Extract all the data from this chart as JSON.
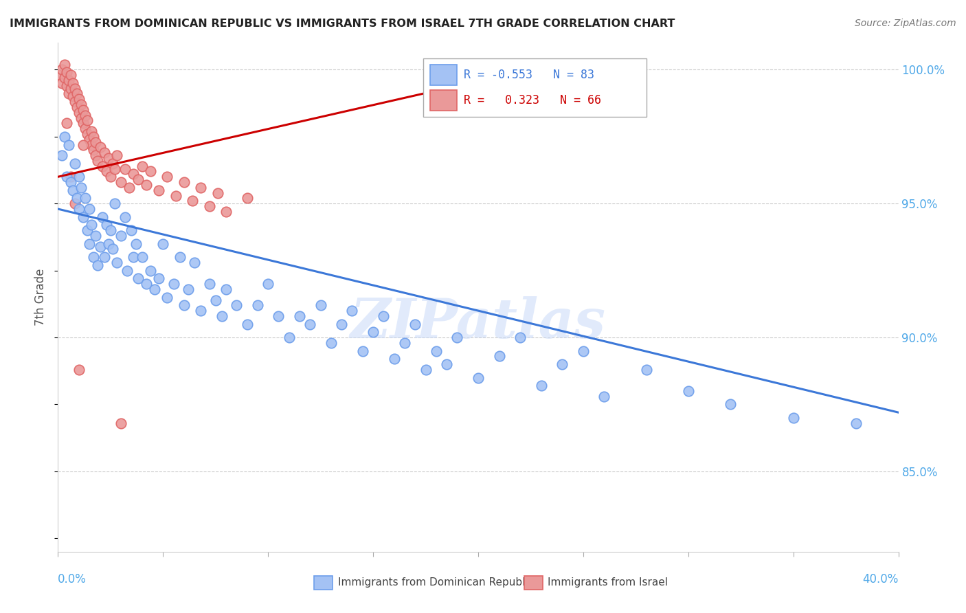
{
  "title": "IMMIGRANTS FROM DOMINICAN REPUBLIC VS IMMIGRANTS FROM ISRAEL 7TH GRADE CORRELATION CHART",
  "source": "Source: ZipAtlas.com",
  "ylabel": "7th Grade",
  "xlim": [
    0.0,
    0.4
  ],
  "ylim": [
    0.82,
    1.01
  ],
  "ytick_values": [
    0.85,
    0.9,
    0.95,
    1.0
  ],
  "ytick_labels": [
    "85.0%",
    "90.0%",
    "95.0%",
    "100.0%"
  ],
  "color_blue_fill": "#a4c2f4",
  "color_blue_edge": "#6d9eeb",
  "color_pink_fill": "#ea9999",
  "color_pink_edge": "#e06666",
  "color_blue_line": "#3c78d8",
  "color_pink_line": "#cc0000",
  "blue_line": [
    [
      0.0,
      0.948
    ],
    [
      0.4,
      0.872
    ]
  ],
  "pink_line": [
    [
      0.0,
      0.96
    ],
    [
      0.235,
      1.002
    ]
  ],
  "blue_points": [
    [
      0.002,
      0.968
    ],
    [
      0.003,
      0.975
    ],
    [
      0.004,
      0.96
    ],
    [
      0.005,
      0.972
    ],
    [
      0.006,
      0.958
    ],
    [
      0.007,
      0.955
    ],
    [
      0.008,
      0.965
    ],
    [
      0.009,
      0.952
    ],
    [
      0.01,
      0.96
    ],
    [
      0.01,
      0.948
    ],
    [
      0.011,
      0.956
    ],
    [
      0.012,
      0.945
    ],
    [
      0.013,
      0.952
    ],
    [
      0.014,
      0.94
    ],
    [
      0.015,
      0.948
    ],
    [
      0.015,
      0.935
    ],
    [
      0.016,
      0.942
    ],
    [
      0.017,
      0.93
    ],
    [
      0.018,
      0.938
    ],
    [
      0.019,
      0.927
    ],
    [
      0.02,
      0.934
    ],
    [
      0.021,
      0.945
    ],
    [
      0.022,
      0.93
    ],
    [
      0.023,
      0.942
    ],
    [
      0.024,
      0.935
    ],
    [
      0.025,
      0.94
    ],
    [
      0.026,
      0.933
    ],
    [
      0.027,
      0.95
    ],
    [
      0.028,
      0.928
    ],
    [
      0.03,
      0.938
    ],
    [
      0.032,
      0.945
    ],
    [
      0.033,
      0.925
    ],
    [
      0.035,
      0.94
    ],
    [
      0.036,
      0.93
    ],
    [
      0.037,
      0.935
    ],
    [
      0.038,
      0.922
    ],
    [
      0.04,
      0.93
    ],
    [
      0.042,
      0.92
    ],
    [
      0.044,
      0.925
    ],
    [
      0.046,
      0.918
    ],
    [
      0.048,
      0.922
    ],
    [
      0.05,
      0.935
    ],
    [
      0.052,
      0.915
    ],
    [
      0.055,
      0.92
    ],
    [
      0.058,
      0.93
    ],
    [
      0.06,
      0.912
    ],
    [
      0.062,
      0.918
    ],
    [
      0.065,
      0.928
    ],
    [
      0.068,
      0.91
    ],
    [
      0.072,
      0.92
    ],
    [
      0.075,
      0.914
    ],
    [
      0.078,
      0.908
    ],
    [
      0.08,
      0.918
    ],
    [
      0.085,
      0.912
    ],
    [
      0.09,
      0.905
    ],
    [
      0.095,
      0.912
    ],
    [
      0.1,
      0.92
    ],
    [
      0.105,
      0.908
    ],
    [
      0.11,
      0.9
    ],
    [
      0.115,
      0.908
    ],
    [
      0.12,
      0.905
    ],
    [
      0.125,
      0.912
    ],
    [
      0.13,
      0.898
    ],
    [
      0.135,
      0.905
    ],
    [
      0.14,
      0.91
    ],
    [
      0.145,
      0.895
    ],
    [
      0.15,
      0.902
    ],
    [
      0.155,
      0.908
    ],
    [
      0.16,
      0.892
    ],
    [
      0.165,
      0.898
    ],
    [
      0.17,
      0.905
    ],
    [
      0.175,
      0.888
    ],
    [
      0.18,
      0.895
    ],
    [
      0.185,
      0.89
    ],
    [
      0.19,
      0.9
    ],
    [
      0.2,
      0.885
    ],
    [
      0.21,
      0.893
    ],
    [
      0.22,
      0.9
    ],
    [
      0.23,
      0.882
    ],
    [
      0.24,
      0.89
    ],
    [
      0.25,
      0.895
    ],
    [
      0.26,
      0.878
    ],
    [
      0.28,
      0.888
    ],
    [
      0.3,
      0.88
    ],
    [
      0.32,
      0.875
    ],
    [
      0.35,
      0.87
    ],
    [
      0.38,
      0.868
    ]
  ],
  "pink_points": [
    [
      0.001,
      0.998
    ],
    [
      0.002,
      0.995
    ],
    [
      0.002,
      1.0
    ],
    [
      0.003,
      0.997
    ],
    [
      0.003,
      1.002
    ],
    [
      0.004,
      0.994
    ],
    [
      0.004,
      0.999
    ],
    [
      0.005,
      0.991
    ],
    [
      0.005,
      0.996
    ],
    [
      0.006,
      0.993
    ],
    [
      0.006,
      0.998
    ],
    [
      0.007,
      0.99
    ],
    [
      0.007,
      0.995
    ],
    [
      0.008,
      0.988
    ],
    [
      0.008,
      0.993
    ],
    [
      0.009,
      0.986
    ],
    [
      0.009,
      0.991
    ],
    [
      0.01,
      0.984
    ],
    [
      0.01,
      0.989
    ],
    [
      0.011,
      0.982
    ],
    [
      0.011,
      0.987
    ],
    [
      0.012,
      0.98
    ],
    [
      0.012,
      0.985
    ],
    [
      0.013,
      0.978
    ],
    [
      0.013,
      0.983
    ],
    [
      0.014,
      0.976
    ],
    [
      0.014,
      0.981
    ],
    [
      0.015,
      0.974
    ],
    [
      0.016,
      0.972
    ],
    [
      0.016,
      0.977
    ],
    [
      0.017,
      0.97
    ],
    [
      0.017,
      0.975
    ],
    [
      0.018,
      0.968
    ],
    [
      0.018,
      0.973
    ],
    [
      0.019,
      0.966
    ],
    [
      0.02,
      0.971
    ],
    [
      0.021,
      0.964
    ],
    [
      0.022,
      0.969
    ],
    [
      0.023,
      0.962
    ],
    [
      0.024,
      0.967
    ],
    [
      0.025,
      0.96
    ],
    [
      0.026,
      0.965
    ],
    [
      0.027,
      0.963
    ],
    [
      0.028,
      0.968
    ],
    [
      0.03,
      0.958
    ],
    [
      0.032,
      0.963
    ],
    [
      0.034,
      0.956
    ],
    [
      0.036,
      0.961
    ],
    [
      0.038,
      0.959
    ],
    [
      0.04,
      0.964
    ],
    [
      0.042,
      0.957
    ],
    [
      0.044,
      0.962
    ],
    [
      0.048,
      0.955
    ],
    [
      0.052,
      0.96
    ],
    [
      0.056,
      0.953
    ],
    [
      0.06,
      0.958
    ],
    [
      0.064,
      0.951
    ],
    [
      0.068,
      0.956
    ],
    [
      0.072,
      0.949
    ],
    [
      0.076,
      0.954
    ],
    [
      0.08,
      0.947
    ],
    [
      0.09,
      0.952
    ],
    [
      0.01,
      0.888
    ],
    [
      0.03,
      0.868
    ],
    [
      0.008,
      0.95
    ],
    [
      0.012,
      0.972
    ],
    [
      0.006,
      0.96
    ],
    [
      0.004,
      0.98
    ]
  ]
}
